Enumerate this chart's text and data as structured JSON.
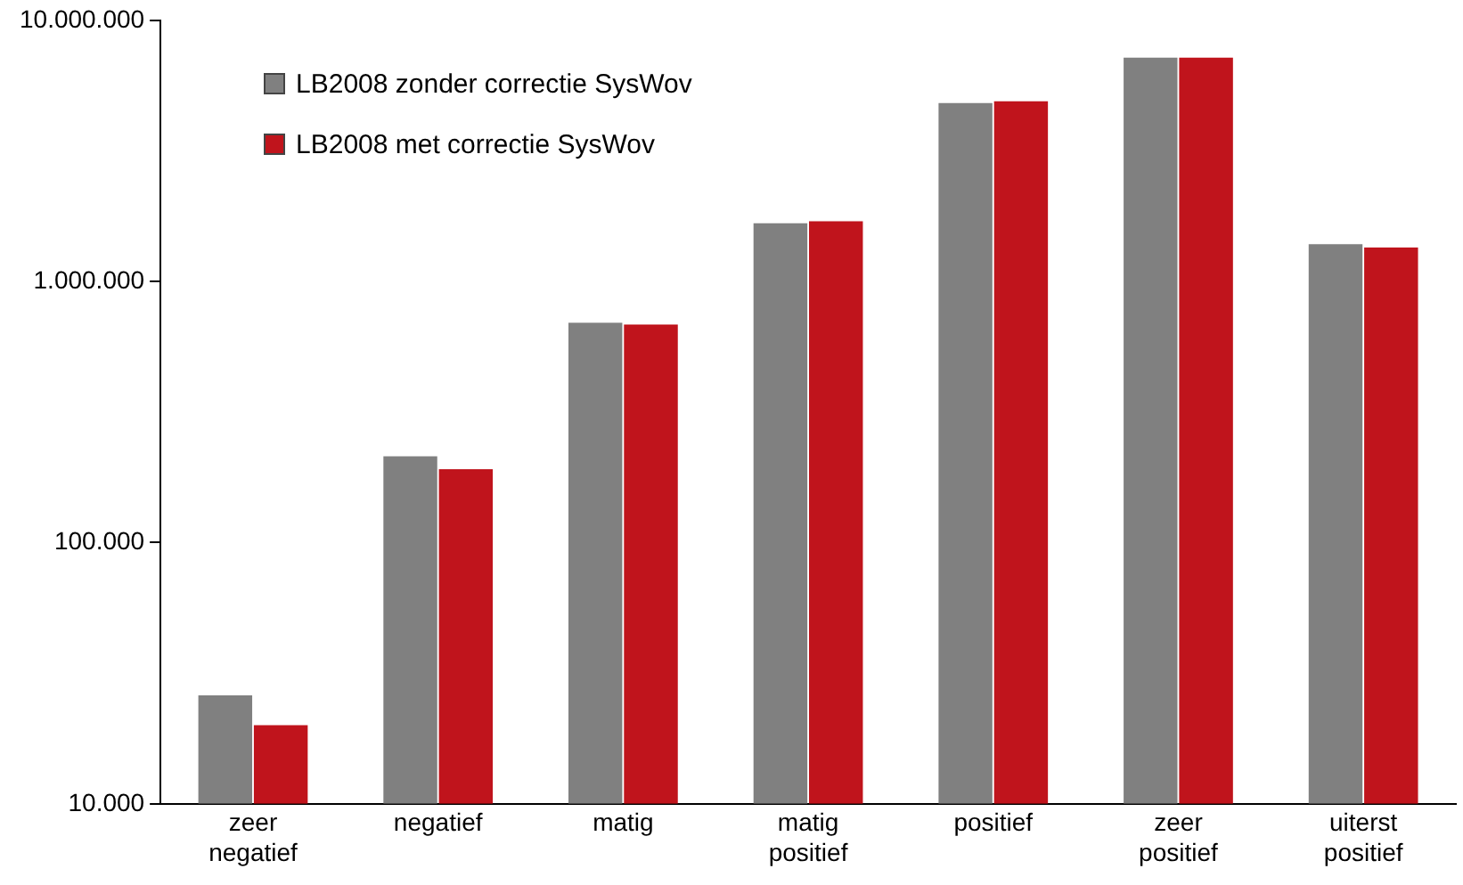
{
  "chart_data": {
    "type": "bar",
    "log": "y",
    "legend": "top left",
    "grid": false,
    "categories": [
      "zeer negatief",
      "negatief",
      "matig",
      "matig positief",
      "positief",
      "zeer positief",
      "uiterst positief"
    ],
    "ylim": [
      10000,
      10000000
    ],
    "yticks": [
      {
        "value": 10000,
        "label": "10.000"
      },
      {
        "value": 100000,
        "label": "100.000"
      },
      {
        "value": 1000000,
        "label": "1.000.000"
      },
      {
        "value": 10000000,
        "label": "10.000.000"
      }
    ],
    "series": [
      {
        "name": "LB2008 zonder correctie SysWov",
        "color": "#808080",
        "values": [
          26000,
          214000,
          695000,
          1670000,
          4820000,
          7200000,
          1390000
        ]
      },
      {
        "name": "LB2008 met correctie SysWov",
        "color": "#c0141c",
        "values": [
          20000,
          191000,
          684000,
          1700000,
          4900000,
          7200000,
          1350000
        ]
      }
    ]
  }
}
